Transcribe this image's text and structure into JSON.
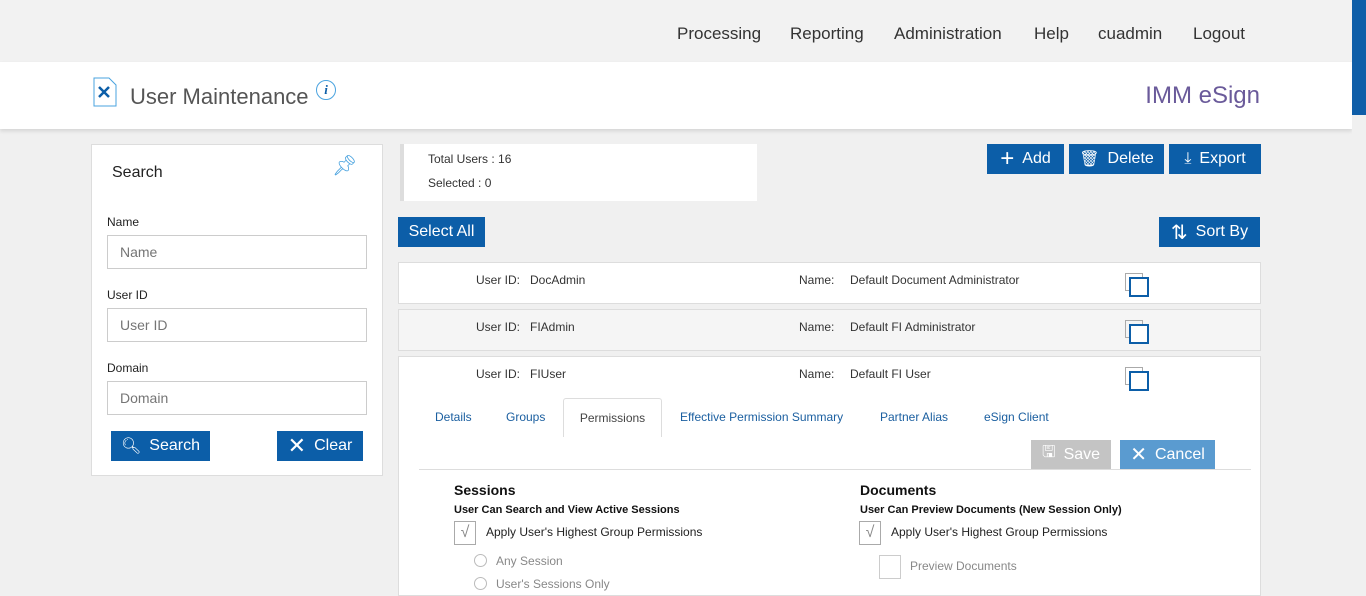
{
  "nav": {
    "items": [
      "Processing",
      "Reporting",
      "Administration",
      "Help",
      "cuadmin",
      "Logout"
    ]
  },
  "header": {
    "title": "User Maintenance",
    "brand": "IMM eSign"
  },
  "search": {
    "title": "Search",
    "name_label": "Name",
    "name_placeholder": "Name",
    "userid_label": "User ID",
    "userid_placeholder": "User ID",
    "domain_label": "Domain",
    "domain_placeholder": "Domain",
    "search_btn": "Search",
    "clear_btn": "Clear"
  },
  "stats": {
    "total": "Total Users : 16",
    "selected": "Selected : 0"
  },
  "toolbar": {
    "add": "Add",
    "delete": "Delete",
    "export": "Export",
    "select_all": "Select All",
    "sort_by": "Sort By"
  },
  "users": [
    {
      "id_label": "User ID:",
      "id": "DocAdmin",
      "name_label": "Name:",
      "name": "Default Document Administrator"
    },
    {
      "id_label": "User ID:",
      "id": "FIAdmin",
      "name_label": "Name:",
      "name": "Default FI Administrator"
    },
    {
      "id_label": "User ID:",
      "id": "FIUser",
      "name_label": "Name:",
      "name": "Default FI User"
    }
  ],
  "tabs": [
    "Details",
    "Groups",
    "Permissions",
    "Effective Permission Summary",
    "Partner Alias",
    "eSign Client"
  ],
  "active_tab": "Permissions",
  "actions": {
    "save": "Save",
    "cancel": "Cancel"
  },
  "sessions": {
    "title": "Sessions",
    "subtitle": "User Can Search and View Active Sessions",
    "apply": "Apply User's Highest Group Permissions",
    "apply_checked": true,
    "opt1": "Any Session",
    "opt2": "User's Sessions Only"
  },
  "documents": {
    "title": "Documents",
    "subtitle": "User Can Preview Documents (New Session Only)",
    "apply": "Apply User's Highest Group Permissions",
    "apply_checked": true,
    "preview": "Preview Documents"
  },
  "colors": {
    "primary": "#0c5ea8",
    "brand": "#6a5a9a"
  }
}
